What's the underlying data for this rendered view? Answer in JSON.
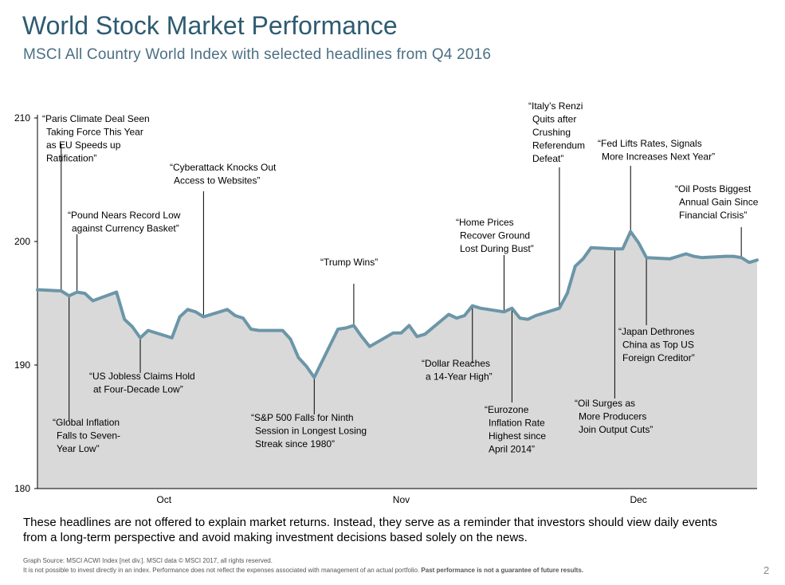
{
  "header": {
    "title": "World Stock Market Performance",
    "subtitle": "MSCI All Country World Index with selected headlines from Q4 2016"
  },
  "chart_data": {
    "type": "area",
    "title": "",
    "xlabel": "",
    "ylabel": "",
    "ylim": [
      180,
      210
    ],
    "yticks": [
      180,
      190,
      200,
      210
    ],
    "x_tick_labels": [
      "Oct",
      "Nov",
      "Dec"
    ],
    "grid": false,
    "line_color": "#6b96a8",
    "fill_color": "#d9d9d9",
    "x": [
      "2016-09-30",
      "2016-10-03",
      "2016-10-04",
      "2016-10-05",
      "2016-10-06",
      "2016-10-07",
      "2016-10-10",
      "2016-10-11",
      "2016-10-12",
      "2016-10-13",
      "2016-10-14",
      "2016-10-17",
      "2016-10-18",
      "2016-10-19",
      "2016-10-20",
      "2016-10-21",
      "2016-10-24",
      "2016-10-25",
      "2016-10-26",
      "2016-10-27",
      "2016-10-28",
      "2016-10-31",
      "2016-11-01",
      "2016-11-02",
      "2016-11-03",
      "2016-11-04",
      "2016-11-07",
      "2016-11-08",
      "2016-11-09",
      "2016-11-10",
      "2016-11-11",
      "2016-11-14",
      "2016-11-15",
      "2016-11-16",
      "2016-11-17",
      "2016-11-18",
      "2016-11-21",
      "2016-11-22",
      "2016-11-23",
      "2016-11-24",
      "2016-11-25",
      "2016-11-28",
      "2016-11-29",
      "2016-11-30",
      "2016-12-01",
      "2016-12-02",
      "2016-12-05",
      "2016-12-06",
      "2016-12-07",
      "2016-12-08",
      "2016-12-09",
      "2016-12-12",
      "2016-12-13",
      "2016-12-14",
      "2016-12-15",
      "2016-12-16",
      "2016-12-19",
      "2016-12-20",
      "2016-12-21",
      "2016-12-22",
      "2016-12-23",
      "2016-12-26",
      "2016-12-27",
      "2016-12-28",
      "2016-12-29",
      "2016-12-30"
    ],
    "series": [
      {
        "values": [
          196.1,
          196.0,
          195.6,
          195.9,
          195.8,
          195.2,
          195.9,
          193.7,
          193.1,
          192.2,
          192.8,
          192.2,
          193.9,
          194.5,
          194.3,
          193.9,
          194.5,
          194.0,
          193.8,
          192.9,
          192.8,
          192.8,
          192.1,
          190.6,
          189.9,
          189.0,
          192.9,
          193.0,
          193.2,
          192.3,
          191.5,
          192.6,
          192.6,
          193.2,
          192.3,
          192.5,
          194.1,
          193.8,
          194.0,
          194.8,
          194.6,
          194.3,
          194.6,
          193.8,
          193.7,
          194.0,
          194.6,
          195.8,
          198.0,
          198.6,
          199.5,
          199.4,
          199.4,
          200.8,
          199.9,
          198.7,
          198.6,
          198.8,
          199.0,
          198.8,
          198.7,
          198.8,
          198.8,
          198.7,
          198.3,
          198.5
        ]
      }
    ],
    "annotations": [
      {
        "text": "“Paris Climate Deal Seen Taking Force This Year as EU Speeds up Ratification”",
        "lines": [
          "“Paris Climate Deal Seen",
          "Taking Force This Year",
          "as EU Speeds up",
          "Ratification”"
        ],
        "x": "2016-10-03",
        "side": "above"
      },
      {
        "text": "“Pound Nears Record Low against Currency Basket”",
        "lines": [
          "“Pound Nears Record Low",
          "against Currency Basket”"
        ],
        "x": "2016-10-05",
        "side": "above"
      },
      {
        "text": "“Global Inflation Falls to Seven-Year Low”",
        "lines": [
          "“Global Inflation",
          "Falls to Seven-",
          "Year Low”"
        ],
        "x": "2016-10-04",
        "side": "below"
      },
      {
        "text": "“US Jobless Claims Hold at Four-Decade Low”",
        "lines": [
          "“US Jobless Claims Hold",
          "at Four-Decade Low”"
        ],
        "x": "2016-10-13",
        "side": "below"
      },
      {
        "text": "“Cyberattack Knocks Out Access to Websites”",
        "lines": [
          "“Cyberattack Knocks Out",
          "Access to Websites”"
        ],
        "x": "2016-10-21",
        "side": "above"
      },
      {
        "text": "“S&P 500 Falls for Ninth Session in Longest Losing Streak since 1980”",
        "lines": [
          "“S&P 500 Falls for Ninth",
          "Session in Longest Losing",
          "Streak since 1980”"
        ],
        "x": "2016-11-04",
        "side": "below"
      },
      {
        "text": "“Trump Wins”",
        "lines": [
          "“Trump Wins”"
        ],
        "x": "2016-11-09",
        "side": "above"
      },
      {
        "text": "“Dollar Reaches a 14-Year High”",
        "lines": [
          "“Dollar Reaches",
          "a 14-Year High”"
        ],
        "x": "2016-11-24",
        "side": "below"
      },
      {
        "text": "“Home Prices Recover Ground Lost During Bust”",
        "lines": [
          "“Home Prices",
          "Recover Ground",
          "Lost During Bust”"
        ],
        "x": "2016-11-28",
        "side": "above"
      },
      {
        "text": "“Eurozone Inflation Rate Highest since April 2014”",
        "lines": [
          "“Eurozone",
          "Inflation Rate",
          "Highest since",
          "April 2014”"
        ],
        "x": "2016-11-29",
        "side": "below"
      },
      {
        "text": "“Italy’s Renzi Quits after Crushing Referendum Defeat”",
        "lines": [
          "“Italy’s Renzi",
          "Quits after",
          "Crushing",
          "Referendum",
          "Defeat”"
        ],
        "x": "2016-12-05",
        "side": "above"
      },
      {
        "text": "“Oil Surges as More Producers Join Output Cuts”",
        "lines": [
          "“Oil Surges as",
          "More Producers",
          "Join Output Cuts”"
        ],
        "x": "2016-12-12",
        "side": "below"
      },
      {
        "text": "“Fed Lifts Rates, Signals More Increases Next Year”",
        "lines": [
          "“Fed Lifts Rates, Signals",
          "More Increases Next Year”"
        ],
        "x": "2016-12-14",
        "side": "above"
      },
      {
        "text": "“Japan Dethrones China as Top US Foreign Creditor”",
        "lines": [
          "“Japan Dethrones",
          "China as Top US",
          "Foreign Creditor”"
        ],
        "x": "2016-12-16",
        "side": "below"
      },
      {
        "text": "“Oil Posts Biggest Annual Gain Since Financial Crisis”",
        "lines": [
          "“Oil Posts Biggest",
          "Annual Gain Since",
          "Financial Crisis”"
        ],
        "x": "2016-12-28",
        "side": "above"
      }
    ]
  },
  "footer": {
    "note": "These headlines are not offered to explain market returns. Instead, they serve as a reminder that investors should view daily events from a long-term perspective and avoid making investment decisions based solely on the news.",
    "source": "Graph Source: MSCI ACWI Index [net div.]. MSCI data © MSCI 2017, all rights reserved.",
    "disclaimer": "It is not possible to invest directly in an index. Performance does not reflect the expenses associated with management of an actual portfolio.",
    "disclaimer_bold": "Past performance is not a guarantee of future results.",
    "page_number": "2"
  }
}
